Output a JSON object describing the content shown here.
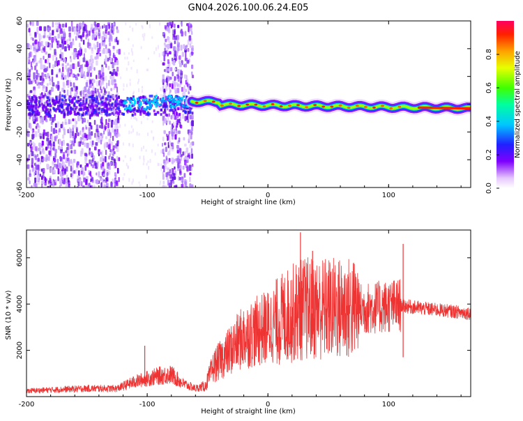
{
  "title": "GN04.2026.100.06.24.E05",
  "colors": {
    "snr_line": "#ee3333",
    "axis": "#000000",
    "spectrogram_low": "#7f00ff",
    "spectrogram_high": "#ff0040"
  },
  "chart_data": [
    {
      "type": "heatmap",
      "name": "spectrogram",
      "xlabel": "Height of straight line (km)",
      "ylabel": "Frequency (Hz)",
      "xlim": [
        -200,
        168
      ],
      "ylim": [
        -60,
        60
      ],
      "xticks": [
        -200,
        -100,
        0,
        100
      ],
      "yticks": [
        -60,
        -40,
        -20,
        0,
        20,
        40,
        60
      ],
      "xtick_labels": [
        "-200",
        "-100",
        "0",
        "100"
      ],
      "ytick_labels": [
        "-60",
        "-40",
        "-20",
        "0",
        "20",
        "40",
        "60"
      ],
      "noise_bands": [
        [
          -200,
          -124
        ],
        [
          -88,
          -63
        ]
      ],
      "ridge": {
        "start_height": -63,
        "end_height": 168,
        "start_frequency": 0,
        "end_frequency": -3
      },
      "colorbar": {
        "label": "Normalized spectral amplitude",
        "range": [
          0,
          1
        ],
        "ticks": [
          0.0,
          0.2,
          0.4,
          0.6,
          0.8
        ],
        "tick_labels": [
          "0.0",
          "0.2",
          "0.4",
          "0.6",
          "0.8"
        ]
      }
    },
    {
      "type": "line",
      "name": "snr",
      "xlabel": "Height of straight line (km)",
      "ylabel": "SNR (10 * v/v)",
      "xlim": [
        -200,
        168
      ],
      "ylim": [
        0,
        7200
      ],
      "xticks": [
        -200,
        -100,
        0,
        100
      ],
      "yticks": [
        2000,
        4000,
        6000
      ],
      "xtick_labels": [
        "-200",
        "-100",
        "0",
        "100"
      ],
      "ytick_labels": [
        "2000",
        "4000",
        "6000"
      ],
      "envelope": [
        {
          "x": -200,
          "y": 250
        },
        {
          "x": -150,
          "y": 350
        },
        {
          "x": -125,
          "y": 350
        },
        {
          "x": -110,
          "y": 650
        },
        {
          "x": -90,
          "y": 900
        },
        {
          "x": -80,
          "y": 950
        },
        {
          "x": -70,
          "y": 550
        },
        {
          "x": -60,
          "y": 350
        },
        {
          "x": -52,
          "y": 450
        },
        {
          "x": -45,
          "y": 1300
        },
        {
          "x": -35,
          "y": 1800
        },
        {
          "x": -20,
          "y": 2600
        },
        {
          "x": 0,
          "y": 3000
        },
        {
          "x": 20,
          "y": 3600
        },
        {
          "x": 30,
          "y": 3800
        },
        {
          "x": 50,
          "y": 3800
        },
        {
          "x": 80,
          "y": 3800
        },
        {
          "x": 100,
          "y": 3900
        },
        {
          "x": 110,
          "y": 3950
        },
        {
          "x": 115,
          "y": 3900
        },
        {
          "x": 130,
          "y": 3800
        },
        {
          "x": 150,
          "y": 3700
        },
        {
          "x": 168,
          "y": 3600
        }
      ],
      "events": [
        {
          "x": -102,
          "y": 2200
        },
        {
          "x": 27,
          "y": 7100
        },
        {
          "x": 37,
          "y": 6300
        },
        {
          "x": 112,
          "y": 6600
        },
        {
          "x": 112,
          "y": 1700
        }
      ]
    }
  ]
}
